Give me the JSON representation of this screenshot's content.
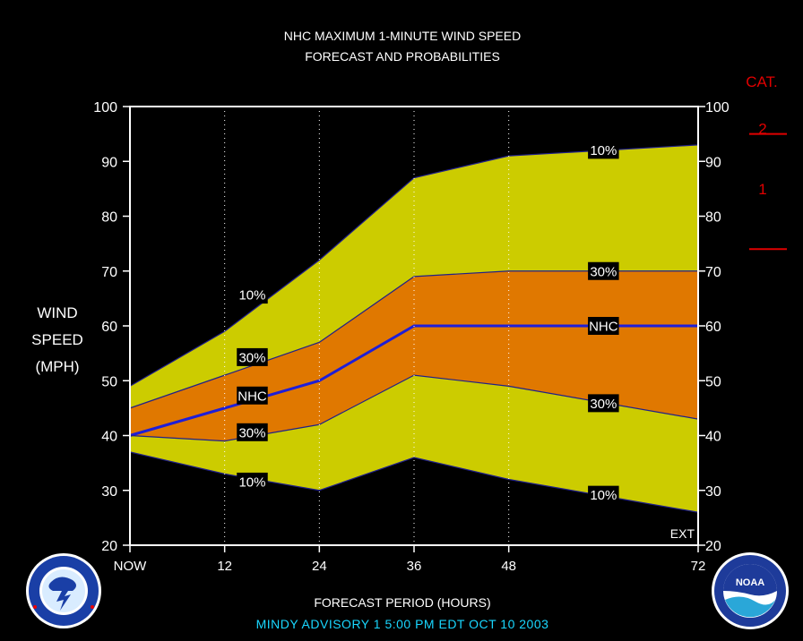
{
  "title_line1": "NHC MAXIMUM 1-MINUTE WIND SPEED",
  "title_line2": "FORECAST AND PROBABILITIES",
  "ylabel": [
    "WIND",
    "SPEED",
    "(MPH)"
  ],
  "xlabel": "FORECAST PERIOD (HOURS)",
  "footer": "MINDY   ADVISORY   1  5:00  PM  EDT  OCT  10  2003",
  "ext_label": "EXT",
  "category_header": "CAT.",
  "category_labels": [
    {
      "label": "2",
      "wind": 96
    },
    {
      "label": "1",
      "wind": 85
    }
  ],
  "category_lines": [
    95,
    74
  ],
  "colors": {
    "outer_band": "#cccc00",
    "inner_band": "#e07800",
    "nhc_line": "#1e1ed8",
    "band_edge": "#20208a",
    "background": "#000000",
    "category": "#e00000",
    "footer": "#19d7ff"
  },
  "logos": {
    "left": "nws-logo",
    "right": "noaa-logo"
  },
  "chart_data": {
    "type": "area",
    "x": [
      0,
      12,
      24,
      36,
      48,
      72
    ],
    "xticks": [
      {
        "value": 0,
        "label": "NOW"
      },
      {
        "value": 12,
        "label": "12"
      },
      {
        "value": 24,
        "label": "24"
      },
      {
        "value": 36,
        "label": "36"
      },
      {
        "value": 48,
        "label": "48"
      },
      {
        "value": 72,
        "label": "72"
      }
    ],
    "xlim": [
      0,
      72
    ],
    "ylim": [
      20,
      100
    ],
    "yticks": [
      20,
      30,
      40,
      50,
      60,
      70,
      80,
      90,
      100
    ],
    "grid_x": [
      12,
      24,
      36,
      48
    ],
    "series": [
      {
        "name": "10% upper",
        "values": [
          49,
          59,
          72,
          87,
          91,
          93
        ]
      },
      {
        "name": "30% upper",
        "values": [
          45,
          51,
          57,
          69,
          70,
          70
        ]
      },
      {
        "name": "NHC",
        "values": [
          40,
          45,
          50,
          60,
          60,
          60
        ]
      },
      {
        "name": "30% lower",
        "values": [
          40,
          39,
          42,
          51,
          49,
          43
        ]
      },
      {
        "name": "10% lower",
        "values": [
          37,
          33,
          30,
          36,
          32,
          26
        ]
      }
    ],
    "labels": [
      {
        "text": "10%",
        "x": 15.5,
        "y": 65.7
      },
      {
        "text": "30%",
        "x": 15.5,
        "y": 54.3
      },
      {
        "text": "NHC",
        "x": 15.5,
        "y": 47.3
      },
      {
        "text": "30%",
        "x": 15.5,
        "y": 40.6
      },
      {
        "text": "10%",
        "x": 15.5,
        "y": 31.6
      },
      {
        "text": "10%",
        "x": 60,
        "y": 92.1
      },
      {
        "text": "30%",
        "x": 60,
        "y": 70
      },
      {
        "text": "NHC",
        "x": 60,
        "y": 60
      },
      {
        "text": "30%",
        "x": 60,
        "y": 45.9
      },
      {
        "text": "10%",
        "x": 60,
        "y": 29.2
      }
    ]
  }
}
